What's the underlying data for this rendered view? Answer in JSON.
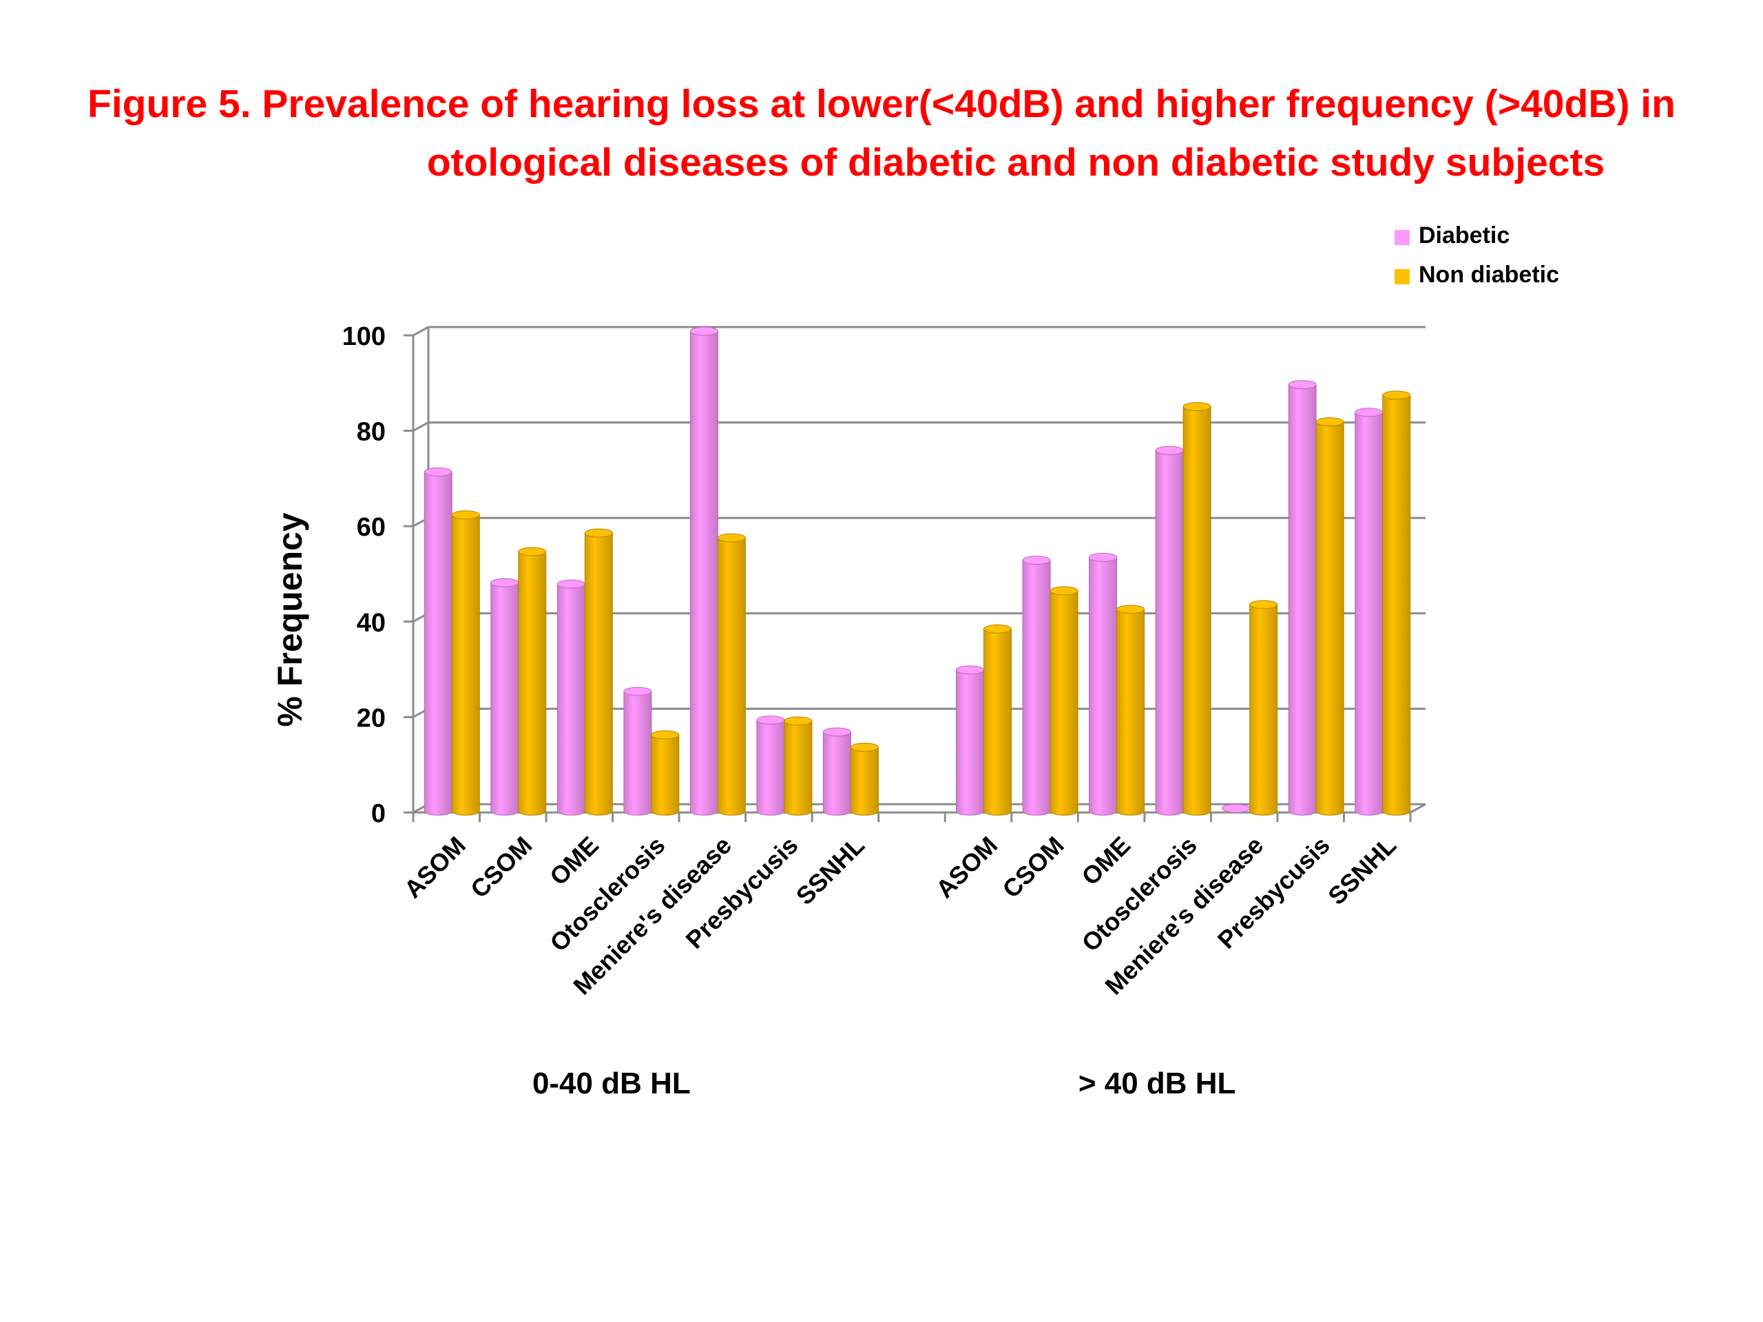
{
  "title": {
    "line1": "Figure 5. Prevalence of hearing loss at lower(<40dB) and higher frequency (>40dB) in",
    "line2": "otological diseases of diabetic and non diabetic study subjects"
  },
  "chart_data": {
    "type": "bar",
    "title": "Figure 5. Prevalence of hearing loss at lower(<40dB) and higher frequency (>40dB) in otological diseases of diabetic and non diabetic study subjects",
    "ylabel": "% Frequency",
    "xlabel": "",
    "ylim": [
      0,
      100
    ],
    "yticks": [
      "0",
      "20",
      "40",
      "60",
      "80",
      "100"
    ],
    "grid": true,
    "legend_position": "top-right",
    "groups": [
      {
        "label": "0-40 dB HL",
        "categories": [
          "ASOM",
          "CSOM",
          "OME",
          "Otosclerosis",
          "Meniere's disease",
          "Presbycusis",
          "SSNHL"
        ]
      },
      {
        "label": "> 40 dB HL",
        "categories": [
          "ASOM",
          "CSOM",
          "OME",
          "Otosclerosis",
          "Meniere's disease",
          "Presbycusis",
          "SSNHL"
        ]
      }
    ],
    "series": [
      {
        "name": "Diabetic",
        "color": "#ff99ff",
        "values": [
          70.5,
          47.3,
          47,
          24.5,
          100,
          18.5,
          16,
          29,
          52,
          52.6,
          75,
          0,
          88.8,
          83
        ]
      },
      {
        "name": "Non diabetic",
        "color": "#ffc000",
        "values": [
          61.5,
          53.8,
          57.7,
          15.4,
          56.7,
          18.3,
          12.8,
          37.6,
          45.6,
          41.7,
          84.2,
          42.7,
          81,
          86.6
        ]
      }
    ]
  }
}
